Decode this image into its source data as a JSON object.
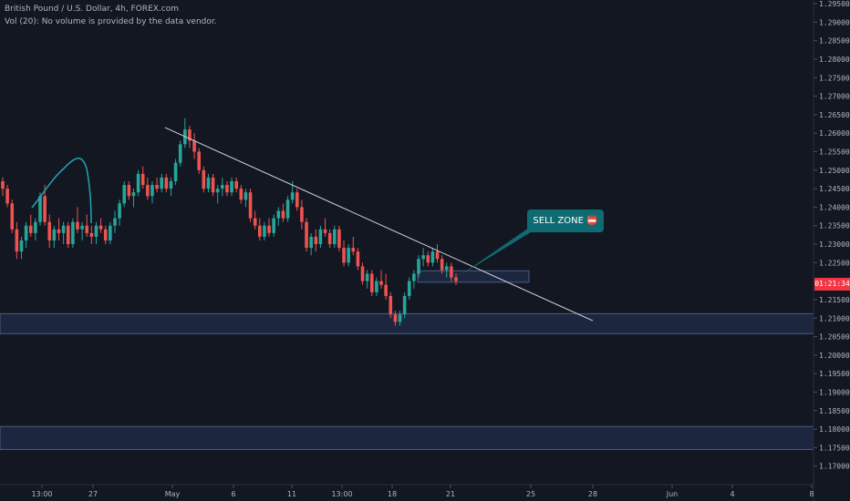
{
  "header": {
    "title": "British Pound / U.S. Dollar, 4h, FOREX.com",
    "volume_note": "Vol (20): No volume is provided by the data vendor."
  },
  "current_price_badge": "01:21:34",
  "annotation": {
    "label": "SELL ZONE 📛"
  },
  "colors": {
    "background": "#131722",
    "up": "#26a69a",
    "down": "#ef5350",
    "zone_fill": "#1e2a44",
    "zone_border": "#4a5d85",
    "trendline": "#d1d4dc",
    "callout": "#0f6b72",
    "axis_text": "#b2b5be"
  },
  "chart_data": {
    "type": "candlestick",
    "ylim": [
      1.165,
      1.296
    ],
    "y_ticks": [
      "1.29500",
      "1.29000",
      "1.28500",
      "1.28000",
      "1.27500",
      "1.27000",
      "1.26500",
      "1.26000",
      "1.25500",
      "1.25000",
      "1.24500",
      "1.24000",
      "1.23500",
      "1.23000",
      "1.22500",
      "1.22000",
      "1.21500",
      "1.21000",
      "1.20500",
      "1.20000",
      "1.19500",
      "1.19000",
      "1.18500",
      "1.18000",
      "1.17500",
      "1.17000"
    ],
    "x_ticks": [
      "13:00",
      "27",
      "May",
      "6",
      "11",
      "13:00",
      "18",
      "21",
      "25",
      "28",
      "Jun",
      "4",
      "8"
    ],
    "zones": [
      {
        "low": 1.2197,
        "high": 1.2228
      },
      {
        "low": 1.2058,
        "high": 1.2112
      },
      {
        "low": 1.1745,
        "high": 1.1807
      }
    ],
    "trendline": {
      "start": 1.2615,
      "end": 1.2093
    },
    "arrow": "callout pointing to sell zone",
    "candles": [
      [
        1.247,
        1.248,
        1.243,
        1.245
      ],
      [
        1.245,
        1.246,
        1.24,
        1.241
      ],
      [
        1.241,
        1.242,
        1.233,
        1.234
      ],
      [
        1.234,
        1.236,
        1.226,
        1.228
      ],
      [
        1.228,
        1.232,
        1.226,
        1.231
      ],
      [
        1.231,
        1.236,
        1.229,
        1.235
      ],
      [
        1.235,
        1.238,
        1.232,
        1.233
      ],
      [
        1.233,
        1.237,
        1.231,
        1.236
      ],
      [
        1.236,
        1.244,
        1.235,
        1.243
      ],
      [
        1.243,
        1.246,
        1.235,
        1.236
      ],
      [
        1.236,
        1.238,
        1.229,
        1.231
      ],
      [
        1.231,
        1.235,
        1.229,
        1.234
      ],
      [
        1.234,
        1.237,
        1.231,
        1.233
      ],
      [
        1.233,
        1.236,
        1.23,
        1.235
      ],
      [
        1.235,
        1.236,
        1.229,
        1.23
      ],
      [
        1.23,
        1.237,
        1.229,
        1.236
      ],
      [
        1.236,
        1.24,
        1.233,
        1.234
      ],
      [
        1.234,
        1.236,
        1.231,
        1.235
      ],
      [
        1.235,
        1.238,
        1.232,
        1.233
      ],
      [
        1.233,
        1.235,
        1.23,
        1.232
      ],
      [
        1.232,
        1.236,
        1.23,
        1.235
      ],
      [
        1.235,
        1.237,
        1.233,
        1.234
      ],
      [
        1.234,
        1.235,
        1.23,
        1.231
      ],
      [
        1.231,
        1.236,
        1.23,
        1.235
      ],
      [
        1.235,
        1.239,
        1.233,
        1.237
      ],
      [
        1.237,
        1.242,
        1.235,
        1.241
      ],
      [
        1.241,
        1.247,
        1.24,
        1.246
      ],
      [
        1.246,
        1.247,
        1.242,
        1.243
      ],
      [
        1.243,
        1.245,
        1.24,
        1.244
      ],
      [
        1.244,
        1.25,
        1.243,
        1.249
      ],
      [
        1.249,
        1.251,
        1.245,
        1.246
      ],
      [
        1.246,
        1.248,
        1.242,
        1.243
      ],
      [
        1.243,
        1.247,
        1.241,
        1.246
      ],
      [
        1.246,
        1.248,
        1.244,
        1.245
      ],
      [
        1.245,
        1.249,
        1.244,
        1.248
      ],
      [
        1.248,
        1.249,
        1.244,
        1.245
      ],
      [
        1.245,
        1.248,
        1.243,
        1.247
      ],
      [
        1.247,
        1.253,
        1.246,
        1.252
      ],
      [
        1.252,
        1.258,
        1.251,
        1.257
      ],
      [
        1.257,
        1.264,
        1.256,
        1.261
      ],
      [
        1.261,
        1.262,
        1.256,
        1.258
      ],
      [
        1.258,
        1.26,
        1.253,
        1.255
      ],
      [
        1.255,
        1.256,
        1.249,
        1.25
      ],
      [
        1.25,
        1.251,
        1.244,
        1.245
      ],
      [
        1.245,
        1.249,
        1.244,
        1.248
      ],
      [
        1.248,
        1.249,
        1.243,
        1.244
      ],
      [
        1.244,
        1.246,
        1.241,
        1.245
      ],
      [
        1.245,
        1.248,
        1.243,
        1.246
      ],
      [
        1.246,
        1.247,
        1.243,
        1.244
      ],
      [
        1.244,
        1.248,
        1.243,
        1.247
      ],
      [
        1.247,
        1.248,
        1.244,
        1.245
      ],
      [
        1.245,
        1.246,
        1.241,
        1.242
      ],
      [
        1.242,
        1.245,
        1.24,
        1.244
      ],
      [
        1.244,
        1.245,
        1.236,
        1.237
      ],
      [
        1.237,
        1.239,
        1.234,
        1.235
      ],
      [
        1.235,
        1.237,
        1.231,
        1.232
      ],
      [
        1.232,
        1.236,
        1.231,
        1.235
      ],
      [
        1.235,
        1.237,
        1.232,
        1.233
      ],
      [
        1.233,
        1.238,
        1.232,
        1.237
      ],
      [
        1.237,
        1.24,
        1.235,
        1.239
      ],
      [
        1.239,
        1.241,
        1.236,
        1.237
      ],
      [
        1.237,
        1.243,
        1.236,
        1.242
      ],
      [
        1.242,
        1.247,
        1.241,
        1.244
      ],
      [
        1.244,
        1.245,
        1.239,
        1.24
      ],
      [
        1.24,
        1.242,
        1.234,
        1.236
      ],
      [
        1.236,
        1.237,
        1.228,
        1.229
      ],
      [
        1.229,
        1.233,
        1.227,
        1.232
      ],
      [
        1.232,
        1.234,
        1.228,
        1.23
      ],
      [
        1.23,
        1.235,
        1.229,
        1.234
      ],
      [
        1.234,
        1.237,
        1.232,
        1.233
      ],
      [
        1.233,
        1.234,
        1.229,
        1.23
      ],
      [
        1.23,
        1.235,
        1.229,
        1.234
      ],
      [
        1.234,
        1.235,
        1.228,
        1.229
      ],
      [
        1.229,
        1.231,
        1.224,
        1.225
      ],
      [
        1.225,
        1.23,
        1.224,
        1.229
      ],
      [
        1.229,
        1.232,
        1.227,
        1.228
      ],
      [
        1.228,
        1.229,
        1.223,
        1.224
      ],
      [
        1.224,
        1.225,
        1.219,
        1.22
      ],
      [
        1.22,
        1.223,
        1.218,
        1.222
      ],
      [
        1.222,
        1.223,
        1.216,
        1.217
      ],
      [
        1.217,
        1.221,
        1.216,
        1.22
      ],
      [
        1.22,
        1.223,
        1.218,
        1.219
      ],
      [
        1.219,
        1.222,
        1.215,
        1.216
      ],
      [
        1.216,
        1.217,
        1.21,
        1.211
      ],
      [
        1.211,
        1.212,
        1.208,
        1.209
      ],
      [
        1.209,
        1.212,
        1.208,
        1.211
      ],
      [
        1.211,
        1.217,
        1.21,
        1.216
      ],
      [
        1.216,
        1.221,
        1.215,
        1.22
      ],
      [
        1.22,
        1.223,
        1.218,
        1.222
      ],
      [
        1.222,
        1.227,
        1.221,
        1.226
      ],
      [
        1.226,
        1.229,
        1.224,
        1.227
      ],
      [
        1.227,
        1.228,
        1.224,
        1.225
      ],
      [
        1.225,
        1.229,
        1.224,
        1.228
      ],
      [
        1.228,
        1.23,
        1.225,
        1.226
      ],
      [
        1.226,
        1.227,
        1.222,
        1.223
      ],
      [
        1.223,
        1.225,
        1.221,
        1.224
      ],
      [
        1.224,
        1.225,
        1.22,
        1.221
      ],
      [
        1.221,
        1.222,
        1.219,
        1.22
      ]
    ]
  }
}
